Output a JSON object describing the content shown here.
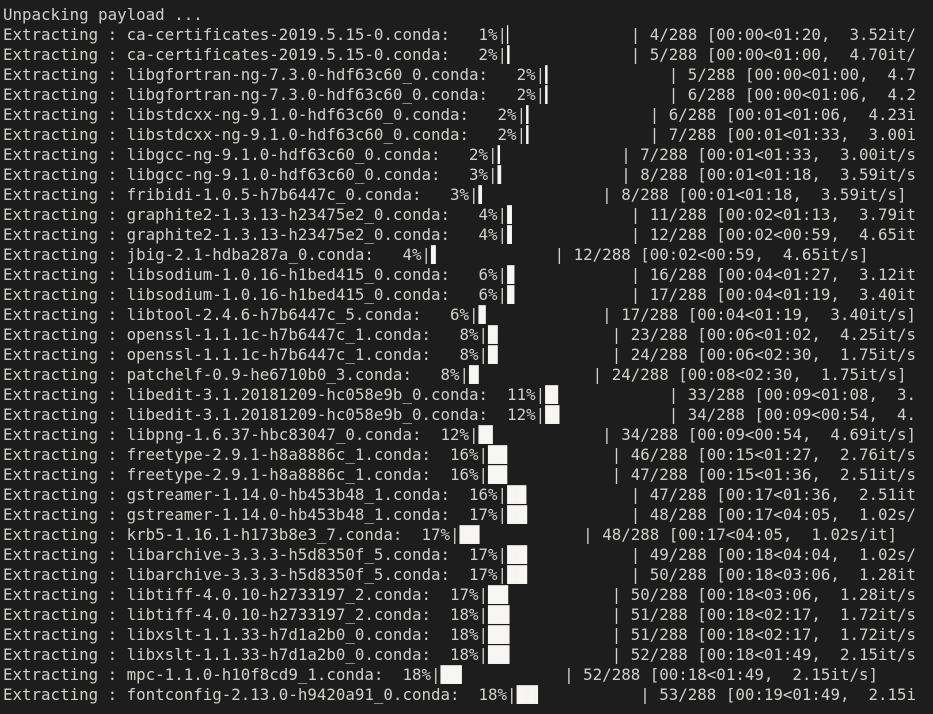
{
  "colors": {
    "background": "#1d1d1d",
    "text": "#d2d0c9",
    "bar_fill": "#f7f6f2"
  },
  "terminal": {
    "progress_total": "288",
    "lines": [
      {
        "t": "Unpacking payload ...",
        "b": "",
        "p": "",
        "r": ""
      },
      {
        "t": "Extracting : ca-certificates-2019.5.15-0.conda:   1%|",
        "b": "▏",
        "p": "            ",
        "r": "| 4/288 [00:00<01:20,  3.52it/"
      },
      {
        "t": "Extracting : ca-certificates-2019.5.15-0.conda:   2%|",
        "b": "▎",
        "p": "            ",
        "r": "| 5/288 [00:00<01:00,  4.70it/"
      },
      {
        "t": "Extracting : libgfortran-ng-7.3.0-hdf63c60_0.conda:   2%|",
        "b": "▎",
        "p": "            ",
        "r": "| 5/288 [00:00<01:00,  4.7"
      },
      {
        "t": "Extracting : libgfortran-ng-7.3.0-hdf63c60_0.conda:   2%|",
        "b": "▎",
        "p": "            ",
        "r": "| 6/288 [00:00<01:06,  4.2"
      },
      {
        "t": "Extracting : libstdcxx-ng-9.1.0-hdf63c60_0.conda:   2%|",
        "b": "▎",
        "p": "            ",
        "r": "| 6/288 [00:01<01:06,  4.23i"
      },
      {
        "t": "Extracting : libstdcxx-ng-9.1.0-hdf63c60_0.conda:   2%|",
        "b": "▎",
        "p": "            ",
        "r": "| 7/288 [00:01<01:33,  3.00i"
      },
      {
        "t": "Extracting : libgcc-ng-9.1.0-hdf63c60_0.conda:   2%|",
        "b": "▎",
        "p": "            ",
        "r": "| 7/288 [00:01<01:33,  3.00it/s"
      },
      {
        "t": "Extracting : libgcc-ng-9.1.0-hdf63c60_0.conda:   3%|",
        "b": "▍",
        "p": "            ",
        "r": "| 8/288 [00:01<01:18,  3.59it/s"
      },
      {
        "t": "Extracting : fribidi-1.0.5-h7b6447c_0.conda:   3%|",
        "b": "▍",
        "p": "            ",
        "r": "| 8/288 [00:01<01:18,  3.59it/s]"
      },
      {
        "t": "Extracting : graphite2-1.3.13-h23475e2_0.conda:   4%|",
        "b": "▌",
        "p": "            ",
        "r": "| 11/288 [00:02<01:13,  3.79it"
      },
      {
        "t": "Extracting : graphite2-1.3.13-h23475e2_0.conda:   4%|",
        "b": "▌",
        "p": "            ",
        "r": "| 12/288 [00:02<00:59,  4.65it"
      },
      {
        "t": "Extracting : jbig-2.1-hdba287a_0.conda:   4%|",
        "b": "▌",
        "p": "            ",
        "r": "| 12/288 [00:02<00:59,  4.65it/s]"
      },
      {
        "t": "Extracting : libsodium-1.0.16-h1bed415_0.conda:   6%|",
        "b": "▊",
        "p": "            ",
        "r": "| 16/288 [00:04<01:27,  3.12it"
      },
      {
        "t": "Extracting : libsodium-1.0.16-h1bed415_0.conda:   6%|",
        "b": "▊",
        "p": "            ",
        "r": "| 17/288 [00:04<01:19,  3.40it"
      },
      {
        "t": "Extracting : libtool-2.4.6-h7b6447c_5.conda:   6%|",
        "b": "▊",
        "p": "            ",
        "r": "| 17/288 [00:04<01:19,  3.40it/s]"
      },
      {
        "t": "Extracting : openssl-1.1.1c-h7b6447c_1.conda:   8%|",
        "b": "█",
        "p": "            ",
        "r": "| 23/288 [00:06<01:02,  4.25it/s"
      },
      {
        "t": "Extracting : openssl-1.1.1c-h7b6447c_1.conda:   8%|",
        "b": "█",
        "p": "            ",
        "r": "| 24/288 [00:06<02:30,  1.75it/s"
      },
      {
        "t": "Extracting : patchelf-0.9-he6710b0_3.conda:   8%|",
        "b": "█",
        "p": "            ",
        "r": "| 24/288 [00:08<02:30,  1.75it/s]"
      },
      {
        "t": "Extracting : libedit-3.1.20181209-hc058e9b_0.conda:  11%|",
        "b": "█▍",
        "p": "           ",
        "r": "| 33/288 [00:09<01:08,  3."
      },
      {
        "t": "Extracting : libedit-3.1.20181209-hc058e9b_0.conda:  12%|",
        "b": "█▌",
        "p": "           ",
        "r": "| 34/288 [00:09<00:54,  4."
      },
      {
        "t": "Extracting : libpng-1.6.37-hbc83047_0.conda:  12%|",
        "b": "█▌",
        "p": "           ",
        "r": "| 34/288 [00:09<00:54,  4.69it/s]"
      },
      {
        "t": "Extracting : freetype-2.9.1-h8a8886c_1.conda:  16%|",
        "b": "██",
        "p": "           ",
        "r": "| 46/288 [00:15<01:27,  2.76it/s"
      },
      {
        "t": "Extracting : freetype-2.9.1-h8a8886c_1.conda:  16%|",
        "b": "██",
        "p": "           ",
        "r": "| 47/288 [00:15<01:36,  2.51it/s"
      },
      {
        "t": "Extracting : gstreamer-1.14.0-hb453b48_1.conda:  16%|",
        "b": "██",
        "p": "           ",
        "r": "| 47/288 [00:17<01:36,  2.51it"
      },
      {
        "t": "Extracting : gstreamer-1.14.0-hb453b48_1.conda:  17%|",
        "b": "██▏",
        "p": "          ",
        "r": "| 48/288 [00:17<04:05,  1.02s/"
      },
      {
        "t": "Extracting : krb5-1.16.1-h173b8e3_7.conda:  17%|",
        "b": "██▏",
        "p": "          ",
        "r": "| 48/288 [00:17<04:05,  1.02s/it]"
      },
      {
        "t": "Extracting : libarchive-3.3.3-h5d8350f_5.conda:  17%|",
        "b": "██▏",
        "p": "          ",
        "r": "| 49/288 [00:18<04:04,  1.02s/"
      },
      {
        "t": "Extracting : libarchive-3.3.3-h5d8350f_5.conda:  17%|",
        "b": "██▏",
        "p": "          ",
        "r": "| 50/288 [00:18<03:06,  1.28it"
      },
      {
        "t": "Extracting : libtiff-4.0.10-h2733197_2.conda:  17%|",
        "b": "██▏",
        "p": "          ",
        "r": "| 50/288 [00:18<03:06,  1.28it/s"
      },
      {
        "t": "Extracting : libtiff-4.0.10-h2733197_2.conda:  18%|",
        "b": "██▎",
        "p": "          ",
        "r": "| 51/288 [00:18<02:17,  1.72it/s"
      },
      {
        "t": "Extracting : libxslt-1.1.33-h7d1a2b0_0.conda:  18%|",
        "b": "██▎",
        "p": "          ",
        "r": "| 51/288 [00:18<02:17,  1.72it/s"
      },
      {
        "t": "Extracting : libxslt-1.1.33-h7d1a2b0_0.conda:  18%|",
        "b": "██▎",
        "p": "          ",
        "r": "| 52/288 [00:18<01:49,  2.15it/s"
      },
      {
        "t": "Extracting : mpc-1.1.0-h10f8cd9_1.conda:  18%|",
        "b": "██▎",
        "p": "          ",
        "r": "| 52/288 [00:18<01:49,  2.15it/s]"
      },
      {
        "t": "Extracting : fontconfig-2.13.0-h9420a91_0.conda:  18%|",
        "b": "██▎",
        "p": "          ",
        "r": "| 53/288 [00:19<01:49,  2.15i"
      }
    ]
  }
}
